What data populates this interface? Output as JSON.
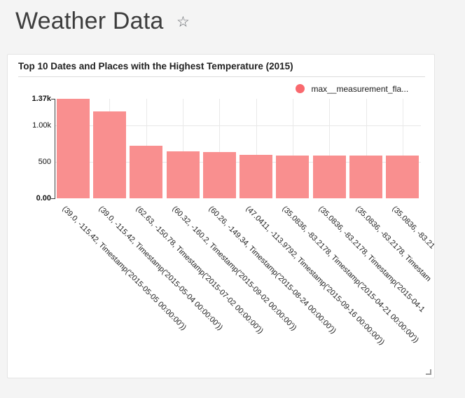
{
  "page": {
    "background": "#f4f4f4",
    "title": "Weather Data",
    "favorite_icon": "☆"
  },
  "card": {
    "title": "Top 10 Dates and Places with the Highest Temperature (2015)"
  },
  "legend": {
    "swatch_color": "#f9696e",
    "label": "max__measurement_fla..."
  },
  "chart_data": {
    "type": "bar",
    "title": "Top 10 Dates and Places with the Highest Temperature (2015)",
    "categories": [
      "(39.0, -115.42, Timestamp('2015-05-05 00:00:00'))",
      "(39.0, -115.42, Timestamp('2015-05-04 00:00:00'))",
      "(62.63, -150.78, Timestamp('2015-07-02 00:00:00'))",
      "(60.32, -160.2, Timestamp('2015-09-02 00:00:00'))",
      "(60.26, -149.34, Timestamp('2015-08-24 00:00:00'))",
      "(47.0411, -113.9792, Timestamp('2015-09-16 00:00:00'))",
      "(35.0836, -83.2178, Timestamp('2015-04-21 00:00:00'))",
      "(35.0836, -83.2178, Timestamp('2015-04-1",
      "(35.0836, -83.2178, Timestam",
      "(35.0836, -83.21"
    ],
    "series": [
      {
        "name": "max__measurement_fla...",
        "color": "#f98f8f",
        "values": [
          1370,
          1200,
          725,
          645,
          635,
          600,
          590,
          590,
          590,
          590
        ]
      }
    ],
    "ylim": [
      0,
      1370
    ],
    "yticks": [
      {
        "label": "1.37k",
        "value": 1370,
        "bold": true
      },
      {
        "label": "1.00k",
        "value": 1000,
        "bold": false
      },
      {
        "label": "500",
        "value": 500,
        "bold": false
      },
      {
        "label": "0.00",
        "value": 0,
        "bold": true
      }
    ],
    "grid": true,
    "legend_position": "top-right",
    "x_label_rotation_deg": 45
  }
}
